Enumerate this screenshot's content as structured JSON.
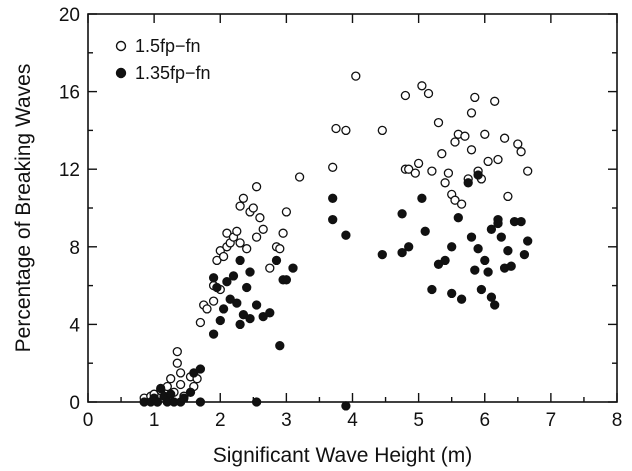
{
  "chart_data": {
    "type": "scatter",
    "title": "",
    "xlabel": "Significant Wave Height (m)",
    "ylabel": "Percentage of Breaking Waves",
    "xlim": [
      0,
      8
    ],
    "ylim": [
      0,
      20
    ],
    "x_ticks": [
      0,
      1,
      2,
      3,
      4,
      5,
      6,
      7,
      8
    ],
    "y_ticks": [
      0,
      4,
      8,
      12,
      16,
      20
    ],
    "grid": false,
    "legend_position": "top-left",
    "series": [
      {
        "name": "1.5fp−fn",
        "marker": "open-circle",
        "color": "#111111",
        "points": [
          [
            0.85,
            0.2
          ],
          [
            0.95,
            0.3
          ],
          [
            1.0,
            0.4
          ],
          [
            1.05,
            0.0
          ],
          [
            1.1,
            0.6
          ],
          [
            1.15,
            0.2
          ],
          [
            1.2,
            0.8
          ],
          [
            1.25,
            1.2
          ],
          [
            1.3,
            0.5
          ],
          [
            1.35,
            2.0
          ],
          [
            1.35,
            2.6
          ],
          [
            1.4,
            0.9
          ],
          [
            1.4,
            1.5
          ],
          [
            1.45,
            0.3
          ],
          [
            1.55,
            1.3
          ],
          [
            1.6,
            0.8
          ],
          [
            1.65,
            1.2
          ],
          [
            1.7,
            4.1
          ],
          [
            1.75,
            5.0
          ],
          [
            1.8,
            4.8
          ],
          [
            1.9,
            5.2
          ],
          [
            1.9,
            6.0
          ],
          [
            1.95,
            7.3
          ],
          [
            2.0,
            5.8
          ],
          [
            2.0,
            7.8
          ],
          [
            2.05,
            7.5
          ],
          [
            2.1,
            8.0
          ],
          [
            2.1,
            8.7
          ],
          [
            2.15,
            8.2
          ],
          [
            2.2,
            8.5
          ],
          [
            2.25,
            8.8
          ],
          [
            2.3,
            8.2
          ],
          [
            2.3,
            10.1
          ],
          [
            2.35,
            10.5
          ],
          [
            2.4,
            7.9
          ],
          [
            2.45,
            9.8
          ],
          [
            2.5,
            10.0
          ],
          [
            2.55,
            8.5
          ],
          [
            2.55,
            11.1
          ],
          [
            2.6,
            9.5
          ],
          [
            2.65,
            8.9
          ],
          [
            2.75,
            6.9
          ],
          [
            2.85,
            8.0
          ],
          [
            2.9,
            7.9
          ],
          [
            2.95,
            8.7
          ],
          [
            3.0,
            9.8
          ],
          [
            3.2,
            11.6
          ],
          [
            3.7,
            12.1
          ],
          [
            3.75,
            14.1
          ],
          [
            3.9,
            14.0
          ],
          [
            4.05,
            16.8
          ],
          [
            4.45,
            14.0
          ],
          [
            4.8,
            15.8
          ],
          [
            4.8,
            12.0
          ],
          [
            4.85,
            12.0
          ],
          [
            4.95,
            11.8
          ],
          [
            5.0,
            12.3
          ],
          [
            5.05,
            16.3
          ],
          [
            5.15,
            15.9
          ],
          [
            5.2,
            11.9
          ],
          [
            5.3,
            14.4
          ],
          [
            5.35,
            12.8
          ],
          [
            5.4,
            11.3
          ],
          [
            5.45,
            11.8
          ],
          [
            5.5,
            10.7
          ],
          [
            5.55,
            10.4
          ],
          [
            5.55,
            13.4
          ],
          [
            5.6,
            13.8
          ],
          [
            5.65,
            10.2
          ],
          [
            5.7,
            13.7
          ],
          [
            5.75,
            11.5
          ],
          [
            5.8,
            13.0
          ],
          [
            5.8,
            14.9
          ],
          [
            5.85,
            15.7
          ],
          [
            5.9,
            11.9
          ],
          [
            5.95,
            11.5
          ],
          [
            6.0,
            13.8
          ],
          [
            6.05,
            12.4
          ],
          [
            6.15,
            15.5
          ],
          [
            6.2,
            12.5
          ],
          [
            6.3,
            13.6
          ],
          [
            6.35,
            10.6
          ],
          [
            6.5,
            13.3
          ],
          [
            6.55,
            12.9
          ],
          [
            6.65,
            11.9
          ]
        ]
      },
      {
        "name": "1.35fp−fn",
        "marker": "filled-circle",
        "color": "#111111",
        "points": [
          [
            0.85,
            0.0
          ],
          [
            0.95,
            0.0
          ],
          [
            1.0,
            0.2
          ],
          [
            1.05,
            0.0
          ],
          [
            1.1,
            0.7
          ],
          [
            1.15,
            0.3
          ],
          [
            1.2,
            0.0
          ],
          [
            1.25,
            0.4
          ],
          [
            1.3,
            0.0
          ],
          [
            1.4,
            0.0
          ],
          [
            1.45,
            0.2
          ],
          [
            1.55,
            0.5
          ],
          [
            1.6,
            1.5
          ],
          [
            1.7,
            1.7
          ],
          [
            1.7,
            0.0
          ],
          [
            1.9,
            3.5
          ],
          [
            1.9,
            6.4
          ],
          [
            1.95,
            5.9
          ],
          [
            2.0,
            4.2
          ],
          [
            2.05,
            4.8
          ],
          [
            2.1,
            6.2
          ],
          [
            2.15,
            5.3
          ],
          [
            2.2,
            6.5
          ],
          [
            2.25,
            5.1
          ],
          [
            2.3,
            7.3
          ],
          [
            2.3,
            4.0
          ],
          [
            2.35,
            4.5
          ],
          [
            2.4,
            5.9
          ],
          [
            2.45,
            6.7
          ],
          [
            2.45,
            4.3
          ],
          [
            2.55,
            5.0
          ],
          [
            2.55,
            0.0
          ],
          [
            2.65,
            4.4
          ],
          [
            2.75,
            4.6
          ],
          [
            2.85,
            7.3
          ],
          [
            2.9,
            2.9
          ],
          [
            2.95,
            6.3
          ],
          [
            3.0,
            6.3
          ],
          [
            3.1,
            6.9
          ],
          [
            3.7,
            10.5
          ],
          [
            3.7,
            9.4
          ],
          [
            3.9,
            8.6
          ],
          [
            4.45,
            7.6
          ],
          [
            4.75,
            9.7
          ],
          [
            4.75,
            7.7
          ],
          [
            4.85,
            8.0
          ],
          [
            5.05,
            10.5
          ],
          [
            5.1,
            8.8
          ],
          [
            5.2,
            5.8
          ],
          [
            5.3,
            7.1
          ],
          [
            5.4,
            7.3
          ],
          [
            5.5,
            8.0
          ],
          [
            5.5,
            5.6
          ],
          [
            5.6,
            9.5
          ],
          [
            5.65,
            5.3
          ],
          [
            5.75,
            11.3
          ],
          [
            5.8,
            8.5
          ],
          [
            5.85,
            6.8
          ],
          [
            5.9,
            7.9
          ],
          [
            5.9,
            11.7
          ],
          [
            5.95,
            5.8
          ],
          [
            6.0,
            7.3
          ],
          [
            6.05,
            6.7
          ],
          [
            6.1,
            8.9
          ],
          [
            6.1,
            5.4
          ],
          [
            6.15,
            5.0
          ],
          [
            6.2,
            9.2
          ],
          [
            6.2,
            9.4
          ],
          [
            6.25,
            8.5
          ],
          [
            6.3,
            6.9
          ],
          [
            6.35,
            7.8
          ],
          [
            6.4,
            7.0
          ],
          [
            6.45,
            9.3
          ],
          [
            6.55,
            9.3
          ],
          [
            6.6,
            7.6
          ],
          [
            6.65,
            8.3
          ],
          [
            3.9,
            -0.2
          ]
        ]
      }
    ]
  }
}
